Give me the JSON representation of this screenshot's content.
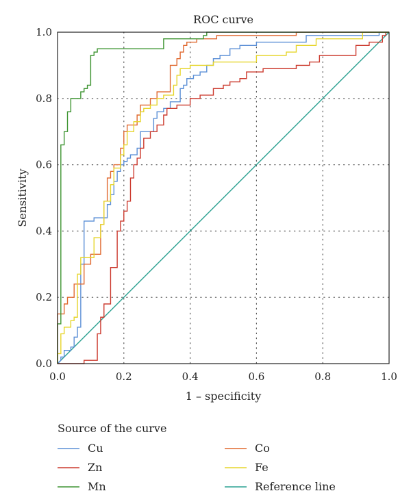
{
  "chart_data": {
    "type": "line",
    "title": "ROC curve",
    "xlabel": "1 – specificity",
    "ylabel": "Sensitivity",
    "xlim": [
      0,
      1
    ],
    "ylim": [
      0,
      1
    ],
    "x_ticks": [
      "0.0",
      "0.2",
      "0.4",
      "0.6",
      "0.8",
      "1.0"
    ],
    "y_ticks": [
      "0.0",
      "0.2",
      "0.4",
      "0.6",
      "0.8",
      "1.0"
    ],
    "grid": "dotted",
    "legend_title": "Source of the curve",
    "legend_position": "bottom",
    "series": [
      {
        "name": "Cu",
        "color": "#5b8fd6",
        "points": [
          [
            0,
            0
          ],
          [
            0.01,
            0.01
          ],
          [
            0.01,
            0.02
          ],
          [
            0.02,
            0.02
          ],
          [
            0.02,
            0.04
          ],
          [
            0.04,
            0.04
          ],
          [
            0.04,
            0.05
          ],
          [
            0.05,
            0.05
          ],
          [
            0.05,
            0.08
          ],
          [
            0.06,
            0.08
          ],
          [
            0.06,
            0.11
          ],
          [
            0.07,
            0.11
          ],
          [
            0.07,
            0.3
          ],
          [
            0.08,
            0.3
          ],
          [
            0.08,
            0.43
          ],
          [
            0.11,
            0.43
          ],
          [
            0.11,
            0.44
          ],
          [
            0.15,
            0.44
          ],
          [
            0.15,
            0.48
          ],
          [
            0.16,
            0.48
          ],
          [
            0.16,
            0.51
          ],
          [
            0.17,
            0.51
          ],
          [
            0.17,
            0.55
          ],
          [
            0.18,
            0.55
          ],
          [
            0.18,
            0.58
          ],
          [
            0.19,
            0.58
          ],
          [
            0.19,
            0.6
          ],
          [
            0.2,
            0.6
          ],
          [
            0.2,
            0.61
          ],
          [
            0.21,
            0.61
          ],
          [
            0.21,
            0.62
          ],
          [
            0.22,
            0.62
          ],
          [
            0.22,
            0.63
          ],
          [
            0.24,
            0.63
          ],
          [
            0.24,
            0.65
          ],
          [
            0.25,
            0.65
          ],
          [
            0.25,
            0.7
          ],
          [
            0.29,
            0.7
          ],
          [
            0.29,
            0.74
          ],
          [
            0.3,
            0.74
          ],
          [
            0.3,
            0.76
          ],
          [
            0.32,
            0.76
          ],
          [
            0.32,
            0.77
          ],
          [
            0.34,
            0.77
          ],
          [
            0.34,
            0.79
          ],
          [
            0.37,
            0.79
          ],
          [
            0.37,
            0.83
          ],
          [
            0.38,
            0.83
          ],
          [
            0.38,
            0.84
          ],
          [
            0.39,
            0.84
          ],
          [
            0.39,
            0.86
          ],
          [
            0.41,
            0.86
          ],
          [
            0.41,
            0.87
          ],
          [
            0.43,
            0.87
          ],
          [
            0.43,
            0.88
          ],
          [
            0.45,
            0.88
          ],
          [
            0.45,
            0.9
          ],
          [
            0.47,
            0.9
          ],
          [
            0.47,
            0.92
          ],
          [
            0.49,
            0.92
          ],
          [
            0.49,
            0.93
          ],
          [
            0.52,
            0.93
          ],
          [
            0.52,
            0.95
          ],
          [
            0.55,
            0.95
          ],
          [
            0.55,
            0.96
          ],
          [
            0.6,
            0.96
          ],
          [
            0.6,
            0.97
          ],
          [
            0.75,
            0.97
          ],
          [
            0.75,
            0.99
          ],
          [
            0.97,
            0.99
          ],
          [
            0.97,
            1.0
          ],
          [
            1,
            1
          ]
        ]
      },
      {
        "name": "Co",
        "color": "#e0682f",
        "points": [
          [
            0,
            0
          ],
          [
            0,
            0.15
          ],
          [
            0.02,
            0.15
          ],
          [
            0.02,
            0.18
          ],
          [
            0.03,
            0.18
          ],
          [
            0.03,
            0.2
          ],
          [
            0.05,
            0.2
          ],
          [
            0.05,
            0.24
          ],
          [
            0.08,
            0.24
          ],
          [
            0.08,
            0.3
          ],
          [
            0.1,
            0.3
          ],
          [
            0.1,
            0.33
          ],
          [
            0.13,
            0.33
          ],
          [
            0.13,
            0.42
          ],
          [
            0.14,
            0.42
          ],
          [
            0.14,
            0.49
          ],
          [
            0.15,
            0.49
          ],
          [
            0.15,
            0.56
          ],
          [
            0.16,
            0.56
          ],
          [
            0.16,
            0.58
          ],
          [
            0.17,
            0.58
          ],
          [
            0.17,
            0.6
          ],
          [
            0.19,
            0.6
          ],
          [
            0.19,
            0.65
          ],
          [
            0.2,
            0.65
          ],
          [
            0.2,
            0.7
          ],
          [
            0.21,
            0.7
          ],
          [
            0.21,
            0.72
          ],
          [
            0.24,
            0.72
          ],
          [
            0.24,
            0.75
          ],
          [
            0.25,
            0.75
          ],
          [
            0.25,
            0.78
          ],
          [
            0.28,
            0.78
          ],
          [
            0.28,
            0.8
          ],
          [
            0.3,
            0.8
          ],
          [
            0.3,
            0.82
          ],
          [
            0.34,
            0.82
          ],
          [
            0.34,
            0.9
          ],
          [
            0.36,
            0.9
          ],
          [
            0.36,
            0.92
          ],
          [
            0.37,
            0.92
          ],
          [
            0.37,
            0.94
          ],
          [
            0.38,
            0.94
          ],
          [
            0.38,
            0.96
          ],
          [
            0.39,
            0.96
          ],
          [
            0.39,
            0.97
          ],
          [
            0.42,
            0.97
          ],
          [
            0.42,
            0.98
          ],
          [
            0.48,
            0.98
          ],
          [
            0.48,
            0.99
          ],
          [
            0.72,
            0.99
          ],
          [
            0.72,
            1.0
          ],
          [
            1,
            1
          ]
        ]
      },
      {
        "name": "Zn",
        "color": "#cc3a2e",
        "points": [
          [
            0,
            0
          ],
          [
            0.08,
            0
          ],
          [
            0.08,
            0.01
          ],
          [
            0.12,
            0.01
          ],
          [
            0.12,
            0.09
          ],
          [
            0.13,
            0.09
          ],
          [
            0.13,
            0.14
          ],
          [
            0.14,
            0.14
          ],
          [
            0.14,
            0.18
          ],
          [
            0.16,
            0.18
          ],
          [
            0.16,
            0.29
          ],
          [
            0.18,
            0.29
          ],
          [
            0.18,
            0.4
          ],
          [
            0.19,
            0.4
          ],
          [
            0.19,
            0.43
          ],
          [
            0.2,
            0.43
          ],
          [
            0.2,
            0.46
          ],
          [
            0.21,
            0.46
          ],
          [
            0.21,
            0.49
          ],
          [
            0.22,
            0.49
          ],
          [
            0.22,
            0.56
          ],
          [
            0.23,
            0.56
          ],
          [
            0.23,
            0.6
          ],
          [
            0.24,
            0.6
          ],
          [
            0.24,
            0.62
          ],
          [
            0.25,
            0.62
          ],
          [
            0.25,
            0.65
          ],
          [
            0.26,
            0.65
          ],
          [
            0.26,
            0.68
          ],
          [
            0.28,
            0.68
          ],
          [
            0.28,
            0.7
          ],
          [
            0.3,
            0.7
          ],
          [
            0.3,
            0.72
          ],
          [
            0.32,
            0.72
          ],
          [
            0.32,
            0.75
          ],
          [
            0.33,
            0.75
          ],
          [
            0.33,
            0.77
          ],
          [
            0.36,
            0.77
          ],
          [
            0.36,
            0.78
          ],
          [
            0.4,
            0.78
          ],
          [
            0.4,
            0.8
          ],
          [
            0.43,
            0.8
          ],
          [
            0.43,
            0.81
          ],
          [
            0.47,
            0.81
          ],
          [
            0.47,
            0.83
          ],
          [
            0.5,
            0.83
          ],
          [
            0.5,
            0.84
          ],
          [
            0.52,
            0.84
          ],
          [
            0.52,
            0.85
          ],
          [
            0.55,
            0.85
          ],
          [
            0.55,
            0.86
          ],
          [
            0.57,
            0.86
          ],
          [
            0.57,
            0.88
          ],
          [
            0.62,
            0.88
          ],
          [
            0.62,
            0.89
          ],
          [
            0.72,
            0.89
          ],
          [
            0.72,
            0.9
          ],
          [
            0.76,
            0.9
          ],
          [
            0.76,
            0.91
          ],
          [
            0.79,
            0.91
          ],
          [
            0.79,
            0.93
          ],
          [
            0.9,
            0.93
          ],
          [
            0.9,
            0.96
          ],
          [
            0.94,
            0.96
          ],
          [
            0.94,
            0.97
          ],
          [
            0.98,
            0.97
          ],
          [
            0.98,
            0.99
          ],
          [
            0.99,
            0.99
          ],
          [
            0.99,
            1.0
          ],
          [
            1,
            1
          ]
        ]
      },
      {
        "name": "Fe",
        "color": "#e6d52b",
        "points": [
          [
            0,
            0
          ],
          [
            0,
            0.03
          ],
          [
            0.01,
            0.03
          ],
          [
            0.01,
            0.09
          ],
          [
            0.02,
            0.09
          ],
          [
            0.02,
            0.11
          ],
          [
            0.04,
            0.11
          ],
          [
            0.04,
            0.13
          ],
          [
            0.05,
            0.13
          ],
          [
            0.05,
            0.14
          ],
          [
            0.06,
            0.14
          ],
          [
            0.06,
            0.27
          ],
          [
            0.07,
            0.27
          ],
          [
            0.07,
            0.32
          ],
          [
            0.11,
            0.32
          ],
          [
            0.11,
            0.38
          ],
          [
            0.13,
            0.38
          ],
          [
            0.13,
            0.42
          ],
          [
            0.14,
            0.42
          ],
          [
            0.14,
            0.49
          ],
          [
            0.16,
            0.49
          ],
          [
            0.16,
            0.54
          ],
          [
            0.17,
            0.54
          ],
          [
            0.17,
            0.59
          ],
          [
            0.19,
            0.59
          ],
          [
            0.19,
            0.63
          ],
          [
            0.2,
            0.63
          ],
          [
            0.2,
            0.66
          ],
          [
            0.21,
            0.66
          ],
          [
            0.21,
            0.7
          ],
          [
            0.23,
            0.7
          ],
          [
            0.23,
            0.73
          ],
          [
            0.25,
            0.73
          ],
          [
            0.25,
            0.76
          ],
          [
            0.26,
            0.76
          ],
          [
            0.26,
            0.77
          ],
          [
            0.28,
            0.77
          ],
          [
            0.28,
            0.78
          ],
          [
            0.3,
            0.78
          ],
          [
            0.3,
            0.8
          ],
          [
            0.32,
            0.8
          ],
          [
            0.32,
            0.81
          ],
          [
            0.35,
            0.81
          ],
          [
            0.35,
            0.84
          ],
          [
            0.36,
            0.84
          ],
          [
            0.36,
            0.87
          ],
          [
            0.37,
            0.87
          ],
          [
            0.37,
            0.89
          ],
          [
            0.4,
            0.89
          ],
          [
            0.4,
            0.9
          ],
          [
            0.47,
            0.9
          ],
          [
            0.47,
            0.91
          ],
          [
            0.6,
            0.91
          ],
          [
            0.6,
            0.93
          ],
          [
            0.69,
            0.93
          ],
          [
            0.69,
            0.94
          ],
          [
            0.72,
            0.94
          ],
          [
            0.72,
            0.96
          ],
          [
            0.78,
            0.96
          ],
          [
            0.78,
            0.98
          ],
          [
            0.92,
            0.98
          ],
          [
            0.92,
            1.0
          ],
          [
            1,
            1
          ]
        ]
      },
      {
        "name": "Mn",
        "color": "#3d9431",
        "points": [
          [
            0,
            0
          ],
          [
            0,
            0.12
          ],
          [
            0.01,
            0.12
          ],
          [
            0.01,
            0.66
          ],
          [
            0.02,
            0.66
          ],
          [
            0.02,
            0.7
          ],
          [
            0.03,
            0.7
          ],
          [
            0.03,
            0.76
          ],
          [
            0.04,
            0.76
          ],
          [
            0.04,
            0.8
          ],
          [
            0.07,
            0.8
          ],
          [
            0.07,
            0.82
          ],
          [
            0.08,
            0.82
          ],
          [
            0.08,
            0.83
          ],
          [
            0.09,
            0.83
          ],
          [
            0.09,
            0.84
          ],
          [
            0.1,
            0.84
          ],
          [
            0.1,
            0.93
          ],
          [
            0.11,
            0.93
          ],
          [
            0.11,
            0.94
          ],
          [
            0.12,
            0.94
          ],
          [
            0.12,
            0.95
          ],
          [
            0.32,
            0.95
          ],
          [
            0.32,
            0.98
          ],
          [
            0.44,
            0.98
          ],
          [
            0.44,
            0.99
          ],
          [
            0.45,
            0.99
          ],
          [
            0.45,
            1.0
          ],
          [
            1,
            1
          ]
        ]
      },
      {
        "name": "Reference line",
        "color": "#29a090",
        "points": [
          [
            0,
            0
          ],
          [
            1,
            1
          ]
        ]
      }
    ]
  }
}
